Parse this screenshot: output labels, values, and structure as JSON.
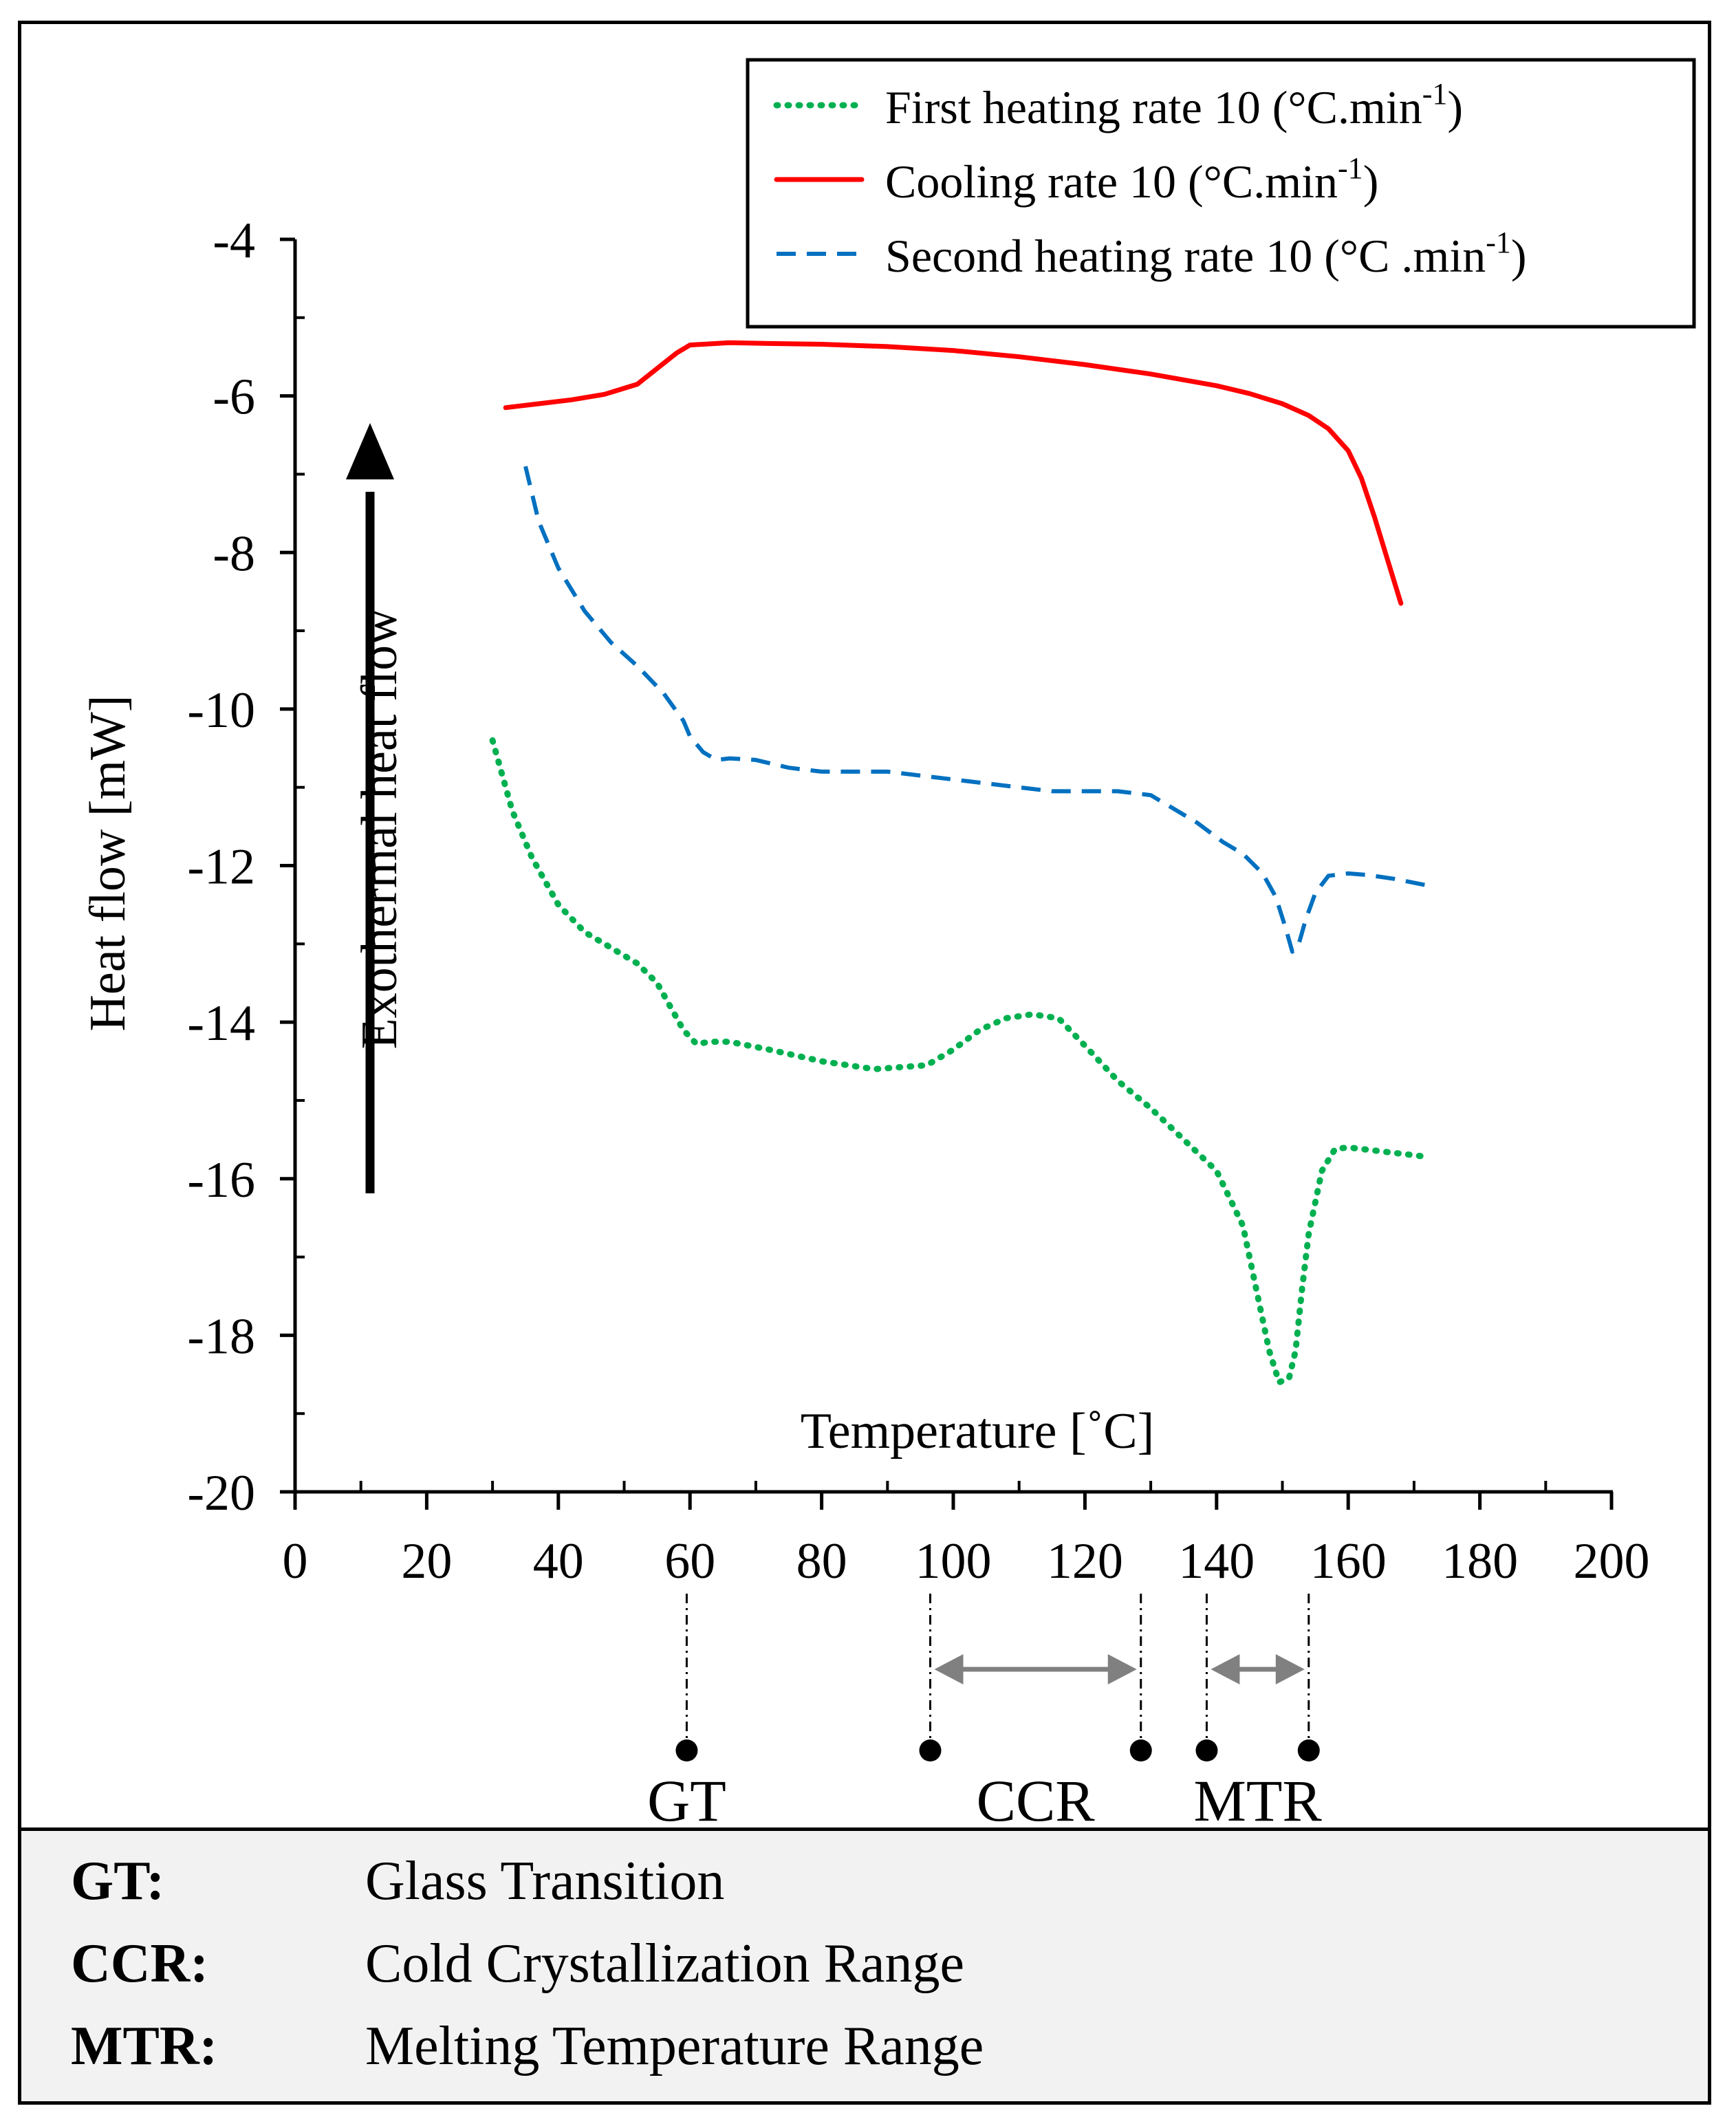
{
  "chart_data": {
    "type": "line",
    "title": "",
    "xlabel": "Temperature [˚C]",
    "ylabel": "Heat flow [mW]",
    "xlim": [
      0,
      200
    ],
    "ylim": [
      -20,
      -4
    ],
    "xticks": [
      0,
      20,
      40,
      60,
      80,
      100,
      120,
      140,
      160,
      180,
      200
    ],
    "yticks": [
      -4,
      -6,
      -8,
      -10,
      -12,
      -14,
      -16,
      -18,
      -20
    ],
    "grid": false,
    "legend_position": "top-right",
    "arrow_label": "Exothermal heat flow",
    "series": [
      {
        "name": "First heating rate 10 (°C.min-1)",
        "legend_text": "First heating rate 10 (°C.min",
        "legend_sup": "-1",
        "legend_close": ")",
        "style": "dotted",
        "color": "#00b050",
        "x": [
          30,
          33,
          36,
          40,
          44,
          48,
          52,
          55,
          57,
          59,
          61,
          63,
          66,
          72,
          80,
          88,
          96,
          100,
          104,
          108,
          112,
          116,
          120,
          125,
          130,
          135,
          140,
          144,
          146,
          148,
          149.5,
          151,
          152,
          153,
          154,
          156,
          158,
          160,
          165,
          172
        ],
        "y": [
          -10.4,
          -11.3,
          -11.9,
          -12.5,
          -12.85,
          -13.05,
          -13.25,
          -13.5,
          -13.8,
          -14.1,
          -14.28,
          -14.25,
          -14.25,
          -14.35,
          -14.5,
          -14.6,
          -14.55,
          -14.35,
          -14.1,
          -13.95,
          -13.9,
          -13.95,
          -14.3,
          -14.75,
          -15.1,
          -15.5,
          -15.9,
          -16.6,
          -17.4,
          -18.2,
          -18.6,
          -18.55,
          -18.2,
          -17.4,
          -16.7,
          -15.9,
          -15.62,
          -15.6,
          -15.65,
          -15.72
        ]
      },
      {
        "name": "Cooling rate 10 (°C.min-1)",
        "legend_text": "Cooling rate 10 (°C.min",
        "legend_sup": "-1",
        "legend_close": ")",
        "style": "solid",
        "color": "#ff0000",
        "x": [
          32,
          37,
          42,
          47,
          52,
          55,
          58,
          60,
          66,
          72,
          80,
          90,
          100,
          110,
          120,
          130,
          140,
          145,
          150,
          154,
          157,
          160,
          162,
          164,
          166,
          168
        ],
        "y": [
          -6.15,
          -6.1,
          -6.05,
          -5.98,
          -5.85,
          -5.65,
          -5.45,
          -5.35,
          -5.32,
          -5.33,
          -5.34,
          -5.37,
          -5.42,
          -5.5,
          -5.6,
          -5.72,
          -5.87,
          -5.97,
          -6.1,
          -6.25,
          -6.42,
          -6.7,
          -7.05,
          -7.55,
          -8.1,
          -8.65
        ]
      },
      {
        "name": "Second heating rate 10 (°C .min-1)",
        "legend_text": "Second heating rate 10 (°C .min",
        "legend_sup": "-1",
        "legend_close": ")",
        "style": "dashed",
        "color": "#0070c0",
        "x": [
          35,
          37,
          40,
          44,
          48,
          52,
          56,
          59,
          60,
          62,
          64,
          66,
          70,
          75,
          80,
          85,
          90,
          95,
          100,
          105,
          110,
          115,
          120,
          125,
          128,
          130,
          133,
          137,
          141,
          144,
          147,
          149,
          150.5,
          151.5,
          152.5,
          153.5,
          155,
          157,
          160,
          163,
          167,
          173
        ],
        "y": [
          -6.9,
          -7.6,
          -8.2,
          -8.75,
          -9.15,
          -9.45,
          -9.8,
          -10.15,
          -10.35,
          -10.55,
          -10.65,
          -10.63,
          -10.65,
          -10.75,
          -10.8,
          -10.8,
          -10.8,
          -10.85,
          -10.9,
          -10.95,
          -11.0,
          -11.05,
          -11.05,
          -11.05,
          -11.08,
          -11.1,
          -11.25,
          -11.45,
          -11.7,
          -11.85,
          -12.1,
          -12.4,
          -12.8,
          -13.1,
          -13.0,
          -12.7,
          -12.35,
          -12.13,
          -12.1,
          -12.12,
          -12.17,
          -12.27
        ]
      }
    ],
    "markers": [
      {
        "label": "GT",
        "points": [
          59.5
        ]
      },
      {
        "label": "CCR",
        "points": [
          96.5,
          128.5
        ]
      },
      {
        "label": "MTR",
        "points": [
          138.5,
          154
        ]
      }
    ]
  },
  "glossary": [
    {
      "abbr": "GT:",
      "definition": "Glass Transition"
    },
    {
      "abbr": "CCR:",
      "definition": "Cold Crystallization Range"
    },
    {
      "abbr": "MTR:",
      "definition": "Melting Temperature Range"
    }
  ]
}
